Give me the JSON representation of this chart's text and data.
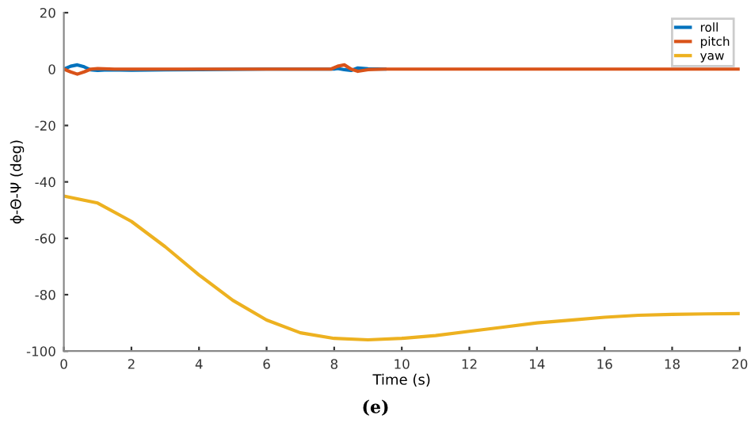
{
  "chart_data": {
    "type": "line",
    "xlabel": "Time (s)",
    "ylabel": "ϕ-Θ-Ψ (deg)",
    "xlim": [
      0,
      20
    ],
    "ylim": [
      -100,
      20
    ],
    "xticks": [
      0,
      2,
      4,
      6,
      8,
      10,
      12,
      14,
      16,
      18,
      20
    ],
    "yticks": [
      -100,
      -80,
      -60,
      -40,
      -20,
      0,
      20
    ],
    "grid": false,
    "legend": "top right",
    "annotations": [
      "(e)"
    ],
    "series": [
      {
        "name": "roll",
        "color": "#0072bd",
        "x": [
          0,
          0.2,
          0.4,
          0.6,
          0.8,
          1.0,
          1.3,
          2,
          3,
          4,
          6,
          8,
          8.1,
          8.3,
          8.5,
          8.7,
          9.0,
          9.5
        ],
        "values": [
          0,
          1,
          1.5,
          0.8,
          -0.3,
          -0.5,
          -0.3,
          -0.4,
          -0.3,
          -0.2,
          0,
          0,
          0.2,
          -0.2,
          -0.5,
          0.4,
          0.1,
          0
        ]
      },
      {
        "name": "pitch",
        "color": "#d95319",
        "x": [
          0,
          0.2,
          0.4,
          0.6,
          0.8,
          1.0,
          1.5,
          2,
          4,
          6,
          7.9,
          8.1,
          8.3,
          8.5,
          8.7,
          9.0,
          9.5,
          10,
          20
        ],
        "values": [
          0,
          -1,
          -1.8,
          -1,
          0,
          0.2,
          0,
          0,
          0,
          0,
          0,
          1,
          1.5,
          0,
          -0.8,
          -0.2,
          0,
          0,
          0
        ]
      },
      {
        "name": "yaw",
        "color": "#edb120",
        "x": [
          0,
          1,
          2,
          3,
          4,
          5,
          6,
          7,
          8,
          9,
          10,
          11,
          12,
          13,
          14,
          15,
          16,
          17,
          18,
          19,
          20
        ],
        "values": [
          -45,
          -47.5,
          -54,
          -63,
          -73,
          -82,
          -89,
          -93.5,
          -95.5,
          -96,
          -95.5,
          -94.5,
          -93,
          -91.5,
          -90,
          -89,
          -88,
          -87.3,
          -87,
          -86.8,
          -86.7
        ]
      }
    ]
  }
}
